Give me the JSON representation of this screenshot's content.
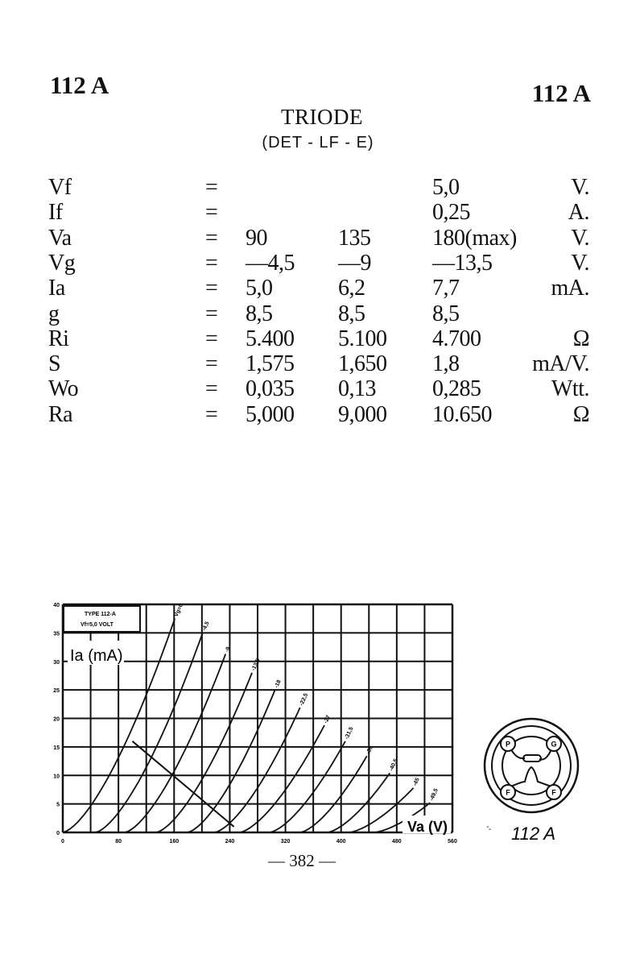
{
  "header": {
    "code_left": "112 A",
    "code_right": "112 A",
    "title": "TRIODE",
    "subtitle": "(DET - LF - E)"
  },
  "specs": [
    {
      "param": "Vf",
      "eq": "=",
      "v1": "",
      "v2": "",
      "v3": "5,0",
      "unit": "V."
    },
    {
      "param": "If",
      "eq": "=",
      "v1": "",
      "v2": "",
      "v3": "0,25",
      "unit": "A."
    },
    {
      "param": "Va",
      "eq": "=",
      "v1": "90",
      "v2": "135",
      "v3": "180(max)",
      "unit": "V."
    },
    {
      "param": "Vg",
      "eq": "=",
      "v1": "—4,5",
      "v2": "—9",
      "v3": "—13,5",
      "unit": "V."
    },
    {
      "param": "Ia",
      "eq": "=",
      "v1": "5,0",
      "v2": "6,2",
      "v3": "7,7",
      "unit": "mA."
    },
    {
      "param": "g",
      "eq": "=",
      "v1": "8,5",
      "v2": "8,5",
      "v3": "8,5",
      "unit": ""
    },
    {
      "param": "Ri",
      "eq": "=",
      "v1": "5.400",
      "v2": "5.100",
      "v3": "4.700",
      "unit": "Ω"
    },
    {
      "param": "S",
      "eq": "=",
      "v1": "1,575",
      "v2": "1,650",
      "v3": "1,8",
      "unit": "mA/V."
    },
    {
      "param": "Wo",
      "eq": "=",
      "v1": "0,035",
      "v2": "0,13",
      "v3": "0,285",
      "unit": "Wtt."
    },
    {
      "param": "Ra",
      "eq": "=",
      "v1": "5,000",
      "v2": "9,000",
      "v3": "10.650",
      "unit": "Ω"
    }
  ],
  "chart_data": {
    "type": "line",
    "title": "TYPE 112-A",
    "subtitle": "Vf=5,0 VOLT",
    "xlabel": "Va (V)",
    "ylabel": "Ia (mA)",
    "xlim": [
      0,
      560
    ],
    "ylim": [
      0,
      40
    ],
    "x_ticks": [
      "0",
      "80",
      "160",
      "240",
      "320",
      "400",
      "480",
      "560"
    ],
    "y_ticks": [
      "0",
      "5",
      "10",
      "15",
      "20",
      "25",
      "30",
      "35",
      "40"
    ],
    "grid": true,
    "series": [
      {
        "name": "Vg=0",
        "va_start": 0,
        "va_end": 161,
        "ia_end": 37.5
      },
      {
        "name": "-4,5",
        "va_start": 47,
        "va_end": 201,
        "ia_end": 35
      },
      {
        "name": "-9",
        "va_start": 89,
        "va_end": 234,
        "ia_end": 31.3
      },
      {
        "name": "-13,5",
        "va_start": 134,
        "va_end": 272,
        "ia_end": 28
      },
      {
        "name": "-18",
        "va_start": 179,
        "va_end": 305,
        "ia_end": 25
      },
      {
        "name": "-22,5",
        "va_start": 218,
        "va_end": 341,
        "ia_end": 21.9
      },
      {
        "name": "-27",
        "va_start": 254,
        "va_end": 376,
        "ia_end": 18.8
      },
      {
        "name": "-31,5",
        "va_start": 297,
        "va_end": 406,
        "ia_end": 16
      },
      {
        "name": "-36",
        "va_start": 341,
        "va_end": 437,
        "ia_end": 13.4
      },
      {
        "name": "-40,5",
        "va_start": 380,
        "va_end": 470,
        "ia_end": 10.4
      },
      {
        "name": "-45",
        "va_start": 411,
        "va_end": 504,
        "ia_end": 7.8
      },
      {
        "name": "-49,5",
        "va_start": 447,
        "va_end": 528,
        "ia_end": 5.2
      }
    ],
    "load_line": {
      "from": [
        100,
        16
      ],
      "to": [
        246,
        1
      ]
    }
  },
  "socket": {
    "label": "112 A",
    "pins": [
      "P",
      "G",
      "F",
      "F"
    ]
  },
  "footer": {
    "page_number": "— 382 —"
  }
}
